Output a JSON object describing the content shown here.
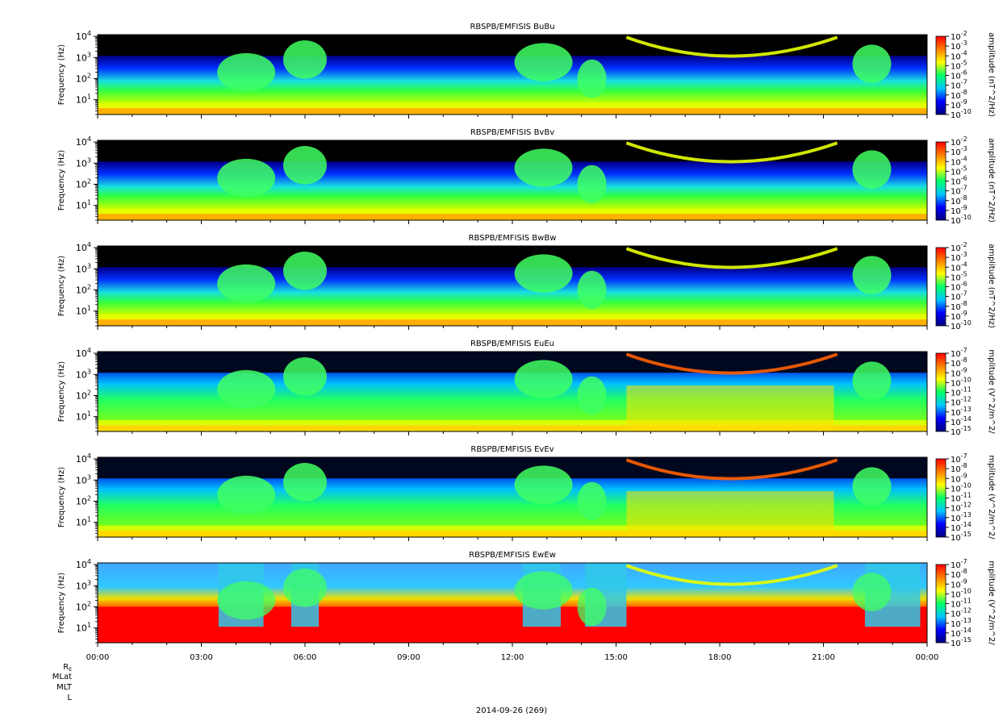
{
  "chart_data": {
    "type": "heatmap",
    "x_time_range": [
      "00:00",
      "00:00"
    ],
    "x_tick_labels": [
      "00:00",
      "03:00",
      "06:00",
      "09:00",
      "12:00",
      "15:00",
      "18:00",
      "21:00",
      "00:00"
    ],
    "ylabel": "Frequency (Hz)",
    "y_scale": "log",
    "ylim_hz": [
      2,
      12000
    ],
    "y_tick_values": [
      10,
      100,
      1000,
      10000
    ],
    "y_tick_bases": [
      "10",
      "10",
      "10",
      "10"
    ],
    "y_tick_exps": [
      "1",
      "2",
      "3",
      "4"
    ],
    "ephemeris_labels": {
      "re_main": "R",
      "re_sub": "E",
      "mlat": "MLat",
      "mlt": "MLT",
      "l": "L"
    },
    "date_label": "2014-09-26 (269)",
    "colormap": [
      "#00007f",
      "#0000ff",
      "#00c8ff",
      "#00ff66",
      "#ffff00",
      "#ff8000",
      "#ff0000"
    ],
    "panels": [
      {
        "title": "RBSPB/EMFISIS  BuBu",
        "colorbar_label": "amplitude (nT^2/Hz)",
        "colorbar_exps": [
          "-2",
          "-3",
          "-4",
          "-5",
          "-6",
          "-7",
          "-8",
          "-9",
          "-10"
        ],
        "colorbar_range": [
          -10,
          -2
        ]
      },
      {
        "title": "RBSPB/EMFISIS  BvBv",
        "colorbar_label": "amplitude (nT^2/Hz)",
        "colorbar_exps": [
          "-2",
          "-3",
          "-4",
          "-5",
          "-6",
          "-7",
          "-8",
          "-9",
          "-10"
        ],
        "colorbar_range": [
          -10,
          -2
        ]
      },
      {
        "title": "RBSPB/EMFISIS  BwBw",
        "colorbar_label": "amplitude (nT^2/Hz)",
        "colorbar_exps": [
          "-2",
          "-3",
          "-4",
          "-5",
          "-6",
          "-7",
          "-8",
          "-9",
          "-10"
        ],
        "colorbar_range": [
          -10,
          -2
        ]
      },
      {
        "title": "RBSPB/EMFISIS  EuEu",
        "colorbar_label": "mplitude (V^2/m^2/",
        "colorbar_exps": [
          "-7",
          "-8",
          "-9",
          "-10",
          "-11",
          "-12",
          "-13",
          "-14",
          "-15"
        ],
        "colorbar_range": [
          -15,
          -7
        ]
      },
      {
        "title": "RBSPB/EMFISIS  EvEv",
        "colorbar_label": "mplitude (V^2/m^2/",
        "colorbar_exps": [
          "-7",
          "-8",
          "-9",
          "-10",
          "-11",
          "-12",
          "-13",
          "-14",
          "-15"
        ],
        "colorbar_range": [
          -15,
          -7
        ]
      },
      {
        "title": "RBSPB/EMFISIS  EwEw",
        "colorbar_label": "mplitude (V^2/m^2/",
        "colorbar_exps": [
          "-7",
          "-8",
          "-9",
          "-10",
          "-11",
          "-12",
          "-13",
          "-14",
          "-15"
        ],
        "colorbar_range": [
          -15,
          -7
        ]
      }
    ]
  }
}
